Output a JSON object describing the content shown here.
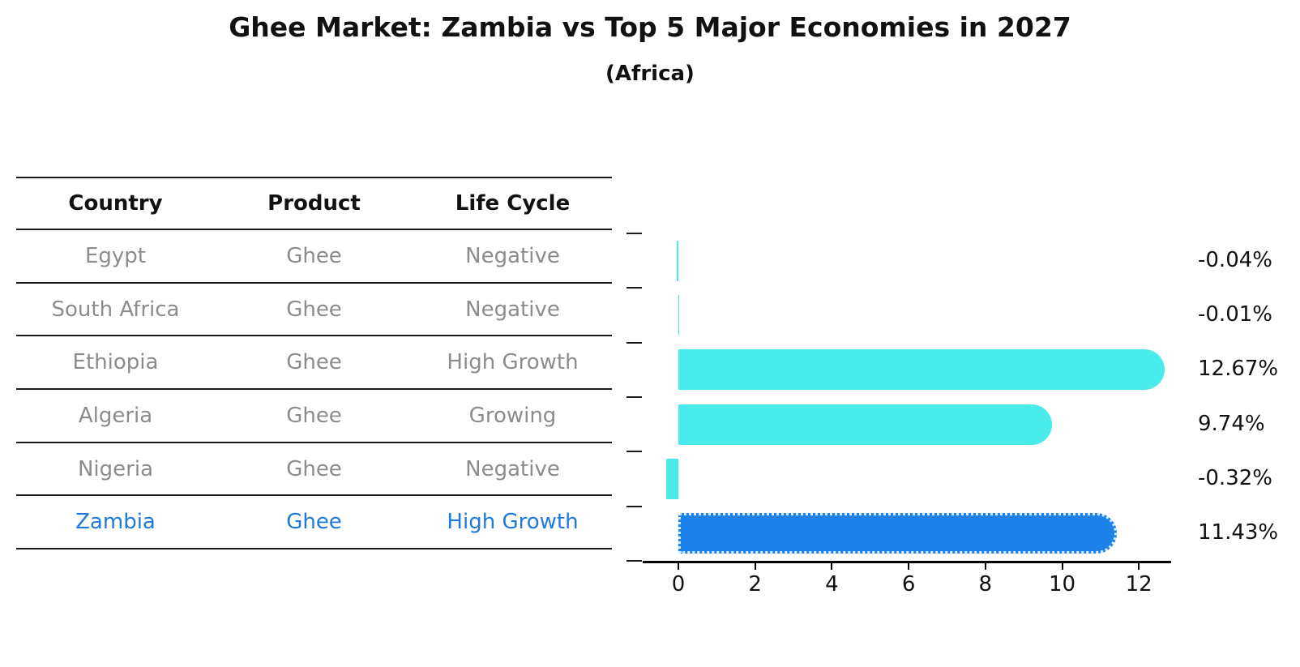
{
  "title": "Ghee Market: Zambia vs Top 5 Major Economies in 2027",
  "subtitle": "(Africa)",
  "table": {
    "headers": [
      "Country",
      "Product",
      "Life Cycle"
    ],
    "rows": [
      {
        "country": "Egypt",
        "product": "Ghee",
        "life_cycle": "Negative",
        "highlighted": false
      },
      {
        "country": "South Africa",
        "product": "Ghee",
        "life_cycle": "Negative",
        "highlighted": false
      },
      {
        "country": "Ethiopia",
        "product": "Ghee",
        "life_cycle": "High Growth",
        "highlighted": false
      },
      {
        "country": "Algeria",
        "product": "Ghee",
        "life_cycle": "Growing",
        "highlighted": false
      },
      {
        "country": "Nigeria",
        "product": "Ghee",
        "life_cycle": "Negative",
        "highlighted": false
      },
      {
        "country": "Zambia",
        "product": "Ghee",
        "life_cycle": "High Growth",
        "highlighted": true
      }
    ]
  },
  "chart_data": {
    "type": "bar",
    "orientation": "horizontal",
    "title": "Ghee Market: Zambia vs Top 5 Major Economies in 2027",
    "subtitle": "(Africa)",
    "categories": [
      "Egypt",
      "South Africa",
      "Ethiopia",
      "Algeria",
      "Nigeria",
      "Zambia"
    ],
    "values": [
      -0.04,
      -0.01,
      12.67,
      9.74,
      -0.32,
      11.43
    ],
    "value_labels": [
      "-0.04%",
      "-0.01%",
      "12.67%",
      "9.74%",
      "-0.32%",
      "11.43%"
    ],
    "xlabel": "",
    "ylabel": "",
    "xticks": [
      0,
      2,
      4,
      6,
      8,
      10,
      12
    ],
    "xlim": [
      -0.95,
      12.85
    ],
    "grid": false,
    "legend": "none",
    "bar_color": "#4aebeb",
    "highlight_color": "#1e82eb",
    "highlight_index": 5
  },
  "colors": {
    "title_text": "#111111",
    "table_text": "#8c8c8c",
    "highlight_text": "#1f7ad9",
    "axis": "#000000",
    "bar": "#4aebeb",
    "highlight_bar": "#1e82eb"
  }
}
